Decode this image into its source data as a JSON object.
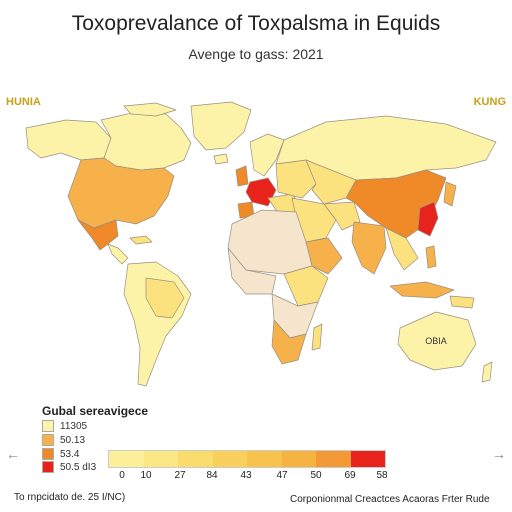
{
  "title": "Toxoprevalance of Toxpalsma in Equids",
  "subtitle": "Avenge to gass: 2021",
  "corner_labels": {
    "left": "HUNIA",
    "right": "KUNG"
  },
  "map": {
    "label_australia": "ОВІА",
    "colors": {
      "land_default": "#f5e5cc",
      "very_low": "#fcf3a8",
      "low": "#fbe27e",
      "mid": "#f6b14a",
      "high": "#f08a28",
      "very_high": "#e8231c",
      "ocean": "#ffffff",
      "border": "#9a8f80"
    }
  },
  "legend": {
    "title": "Gubal sereavigece",
    "items": [
      {
        "label": "11305",
        "color": "#fcf3a8"
      },
      {
        "label": "50.13",
        "color": "#f6b14a"
      },
      {
        "label": "53.4",
        "color": "#f08a28"
      },
      {
        "label": "50.5 dI3",
        "color": "#e8231c"
      }
    ]
  },
  "scale": {
    "colors": [
      "#fcef9a",
      "#fbe784",
      "#fadc6e",
      "#f9d05c",
      "#f7c34e",
      "#f5b442",
      "#f39a36",
      "#e8231c"
    ],
    "ticks": [
      "0",
      "10",
      "27",
      "84",
      "43",
      "47",
      "50",
      "69",
      "58"
    ]
  },
  "footer": {
    "left": "To rnpcidato de. 25 I/NC)",
    "right": "Corponionmal Creactces Acaoras Frter Rude"
  },
  "nav": {
    "prev": "←",
    "next": "→"
  }
}
